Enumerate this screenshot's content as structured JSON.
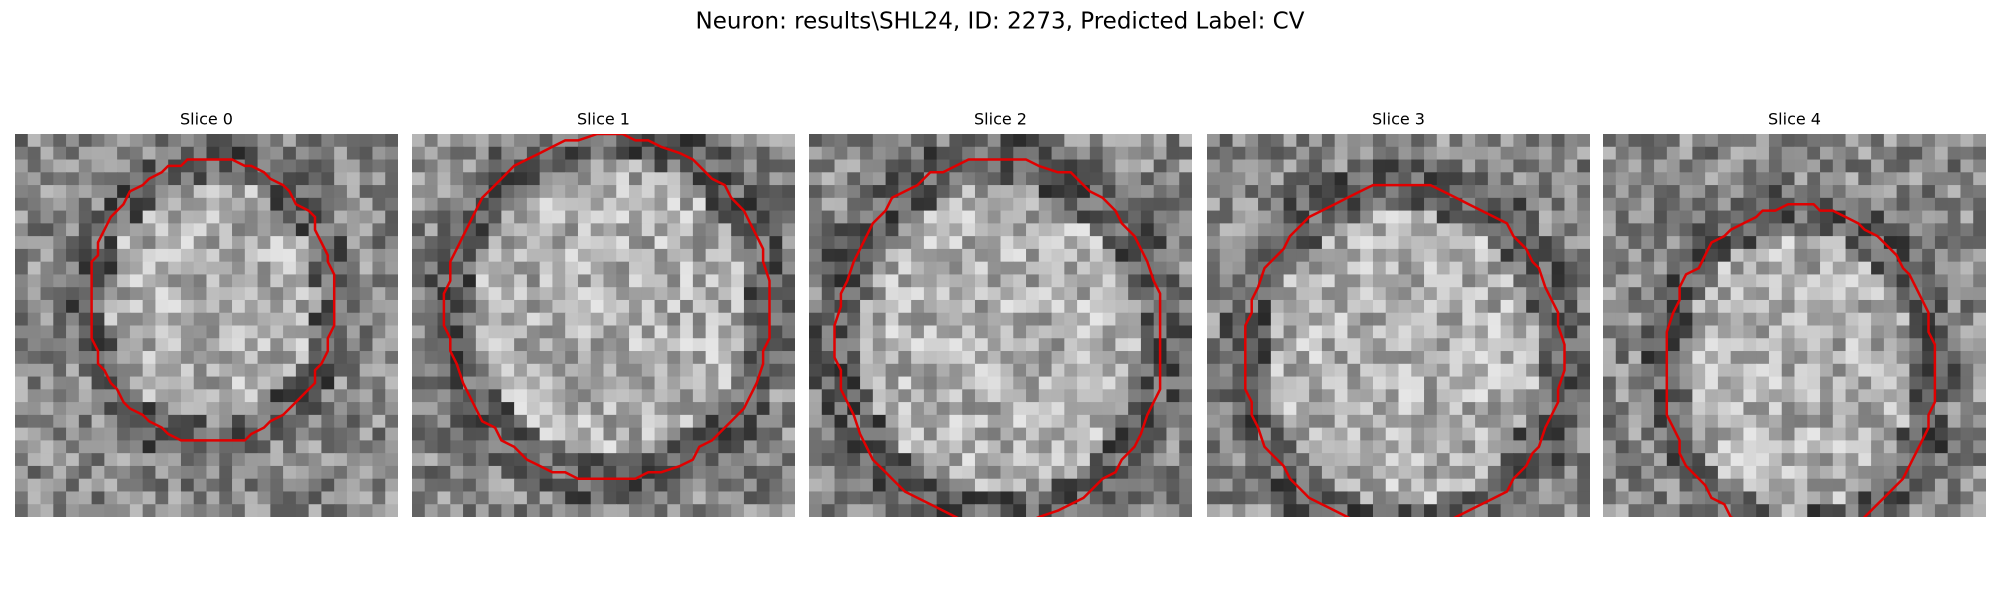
{
  "header": {
    "title": "Neuron: results\\SHL24, ID: 2273, Predicted Label: CV"
  },
  "panels": [
    {
      "title": "Slice 0"
    },
    {
      "title": "Slice 1"
    },
    {
      "title": "Slice 2"
    },
    {
      "title": "Slice 3"
    },
    {
      "title": "Slice 4"
    }
  ]
}
